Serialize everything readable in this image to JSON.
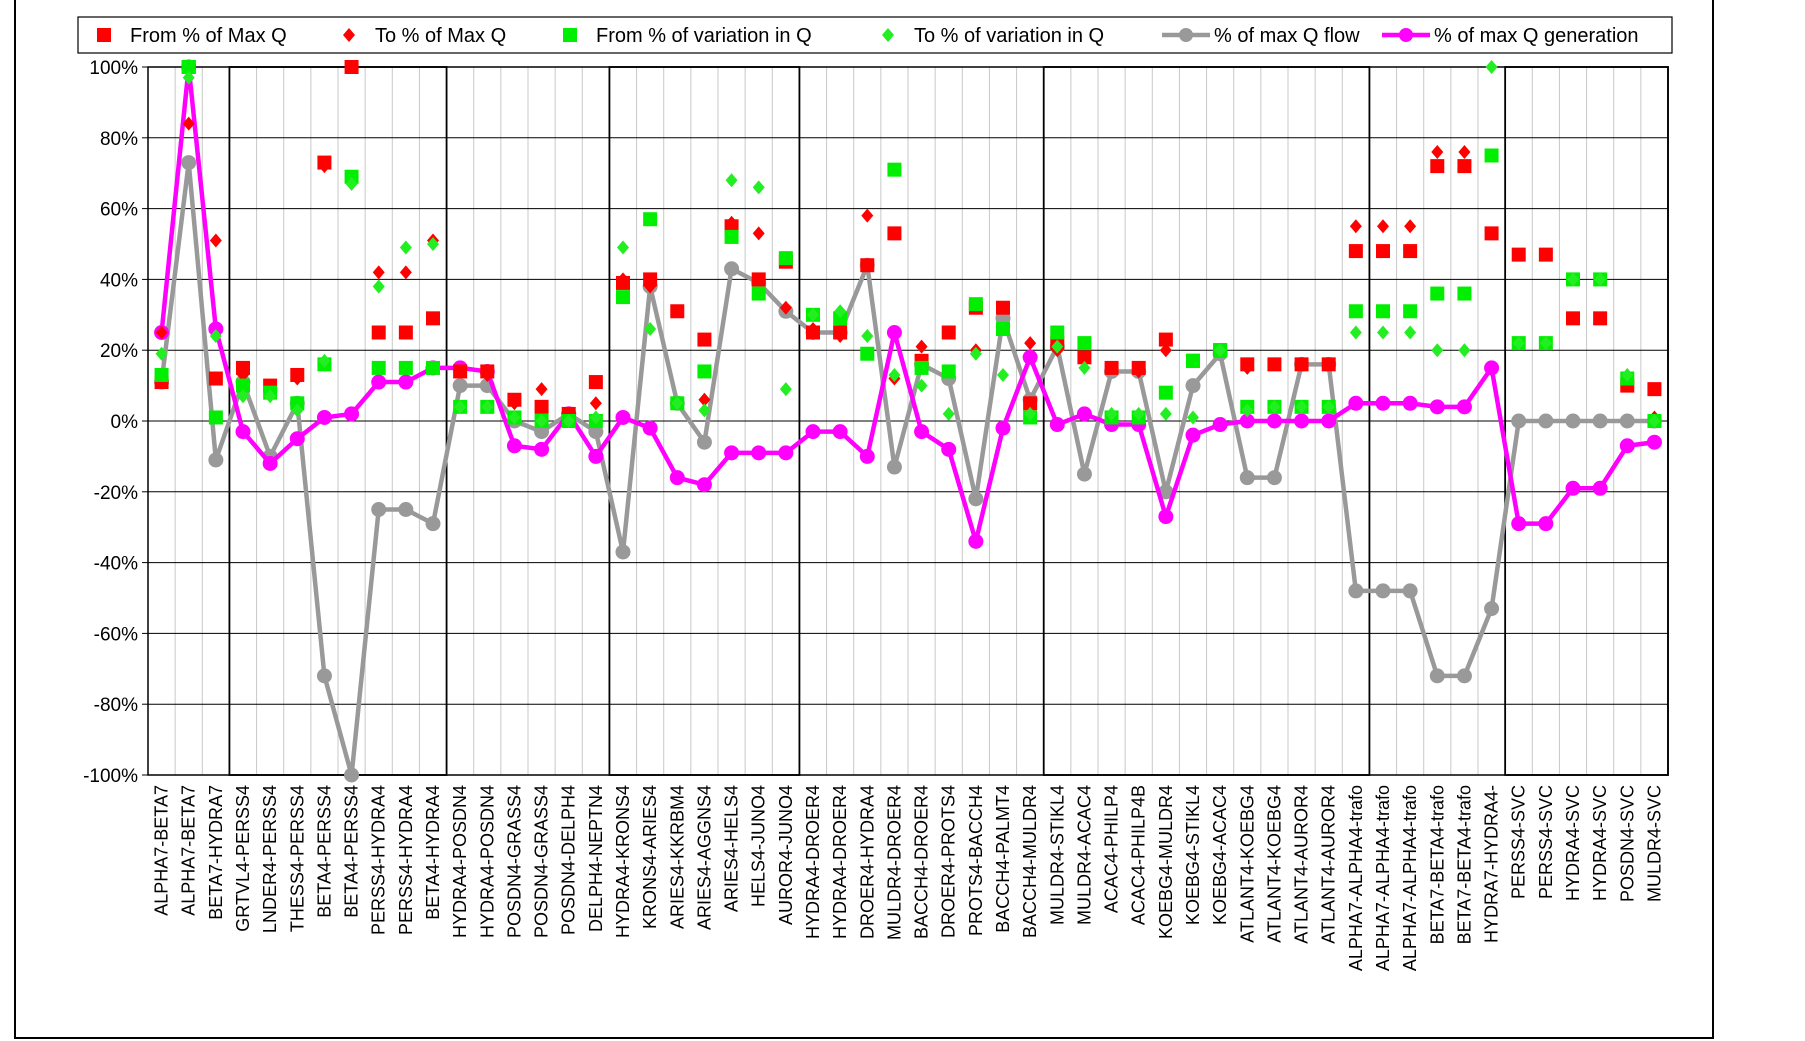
{
  "chart_data": {
    "type": "line",
    "y_unit": "%",
    "ylim": [
      -100,
      100
    ],
    "yticks": [
      -100,
      -80,
      -60,
      -40,
      -20,
      0,
      20,
      40,
      60,
      80,
      100
    ],
    "grid": true,
    "legend_position": "top",
    "categories": [
      "ALPHA7-BETA7",
      "ALPHA7-BETA7",
      "BETA7-HYDRA7",
      "GRTVL4-PERSS4",
      "LNDER4-PERSS4",
      "THESS4-PERSS4",
      "BETA4-PERSS4",
      "BETA4-PERSS4",
      "PERSS4-HYDRA4",
      "PERSS4-HYDRA4",
      "BETA4-HYDRA4",
      "HYDRA4-POSDN4",
      "HYDRA4-POSDN4",
      "POSDN4-GRASS4",
      "POSDN4-GRASS4",
      "POSDN4-DELPH4",
      "DELPH4-NEPTN4",
      "HYDRA4-KRONS4",
      "KRONS4-ARIES4",
      "ARIES4-KKRBM4",
      "ARIES4-AGGNS4",
      "ARIES4-HELS4",
      "HELS4-JUNO4",
      "AUROR4-JUNO4",
      "HYDRA4-DROER4",
      "HYDRA4-DROER4",
      "DROER4-HYDRA4",
      "MULDR4-DROER4",
      "BACCH4-DROER4",
      "DROER4-PROTS4",
      "PROTS4-BACCH4",
      "BACCH4-PALMT4",
      "BACCH4-MULDR4",
      "MULDR4-STIKL4",
      "MULDR4-ACAC4",
      "ACAC4-PHILP4",
      "ACAC4-PHILP4B",
      "KOEBG4-MULDR4",
      "KOEBG4-STIKL4",
      "KOEBG4-ACAC4",
      "ATLANT4-KOEBG4",
      "ATLANT4-KOEBG4",
      "ATLANT4-AUROR4",
      "ATLANT4-AUROR4",
      "ALPHA7-ALPHA4-trafo",
      "ALPHA7-ALPHA4-trafo",
      "ALPHA7-ALPHA4-trafo",
      "BETA7-BETA4-trafo",
      "BETA7-BETA4-trafo",
      "HYDRA7-HYDRA4-",
      "PERSS4-SVC",
      "PERSS4-SVC",
      "HYDRA4-SVC",
      "HYDRA4-SVC",
      "POSDN4-SVC",
      "MULDR4-SVC"
    ],
    "groups": [
      [
        3,
        10
      ],
      [
        17,
        23
      ],
      [
        33,
        44
      ],
      [
        50,
        55
      ]
    ],
    "series": [
      {
        "name": "From % of Max Q",
        "marker": "square",
        "color": "#ff0000",
        "values": [
          11,
          100,
          12,
          15,
          10,
          13,
          73,
          100,
          25,
          25,
          29,
          14,
          14,
          6,
          4,
          2,
          11,
          39,
          40,
          31,
          23,
          55,
          40,
          45,
          25,
          25,
          44,
          53,
          17,
          25,
          32,
          32,
          5,
          22,
          18,
          15,
          15,
          23,
          17,
          20,
          16,
          16,
          16,
          16,
          48,
          48,
          48,
          72,
          72,
          53,
          47,
          47,
          29,
          29,
          10,
          9
        ]
      },
      {
        "name": "To % of Max Q",
        "marker": "diamond",
        "color": "#ff0000",
        "values": [
          25,
          84,
          51,
          13,
          10,
          12,
          72,
          100,
          42,
          42,
          51,
          14,
          13,
          5,
          9,
          1,
          5,
          40,
          38,
          5,
          6,
          56,
          53,
          32,
          26,
          24,
          58,
          12,
          21,
          14,
          20,
          32,
          22,
          20,
          18,
          15,
          14,
          20,
          17,
          20,
          15,
          16,
          16,
          16,
          55,
          55,
          55,
          76,
          76,
          75,
          22,
          22,
          40,
          40,
          11,
          1
        ]
      },
      {
        "name": "From % of variation in Q",
        "marker": "square",
        "color": "#00ee00",
        "values": [
          13,
          100,
          1,
          10,
          8,
          5,
          16,
          69,
          15,
          15,
          15,
          4,
          4,
          1,
          0,
          0,
          0,
          35,
          57,
          5,
          14,
          52,
          36,
          46,
          30,
          29,
          19,
          71,
          15,
          14,
          33,
          26,
          1,
          25,
          22,
          1,
          1,
          8,
          17,
          20,
          4,
          4,
          4,
          4,
          31,
          31,
          31,
          36,
          36,
          75,
          22,
          22,
          40,
          40,
          12,
          0
        ]
      },
      {
        "name": "To % of variation in Q",
        "marker": "diamond",
        "color": "#22ee22",
        "values": [
          19,
          97,
          24,
          7,
          7,
          3,
          17,
          67,
          38,
          49,
          50,
          4,
          4,
          1,
          0,
          0,
          1,
          49,
          26,
          5,
          3,
          68,
          66,
          9,
          30,
          31,
          24,
          13,
          10,
          2,
          19,
          13,
          2,
          21,
          15,
          2,
          2,
          2,
          1,
          20,
          3,
          4,
          4,
          4,
          25,
          25,
          25,
          20,
          20,
          100,
          22,
          22,
          40,
          40,
          13,
          0
        ]
      },
      {
        "name": "% of max Q flow",
        "marker": "circle-line",
        "color": "#999999",
        "values": [
          11,
          73,
          -11,
          11,
          -10,
          5,
          -72,
          -100,
          -25,
          -25,
          -29,
          10,
          10,
          0,
          -3,
          2,
          -3,
          -37,
          38,
          5,
          -6,
          43,
          39,
          31,
          25,
          25,
          44,
          -13,
          16,
          12,
          -22,
          29,
          6,
          21,
          -15,
          14,
          14,
          -20,
          10,
          19,
          -16,
          -16,
          16,
          16,
          -48,
          -48,
          -48,
          -72,
          -72,
          -53,
          0,
          0,
          0,
          0,
          0,
          0
        ]
      },
      {
        "name": "% of max Q generation",
        "marker": "circle-line",
        "color": "#ff00ff",
        "values": [
          25,
          100,
          26,
          -3,
          -12,
          -5,
          1,
          2,
          11,
          11,
          15,
          15,
          14,
          -7,
          -8,
          2,
          -10,
          1,
          -2,
          -16,
          -18,
          -9,
          -9,
          -9,
          -3,
          -3,
          -10,
          25,
          -3,
          -8,
          -34,
          -2,
          18,
          -1,
          2,
          -1,
          -1,
          -27,
          -4,
          -1,
          0,
          0,
          0,
          0,
          5,
          5,
          5,
          4,
          4,
          15,
          -29,
          -29,
          -19,
          -19,
          -7,
          -6
        ]
      }
    ]
  }
}
